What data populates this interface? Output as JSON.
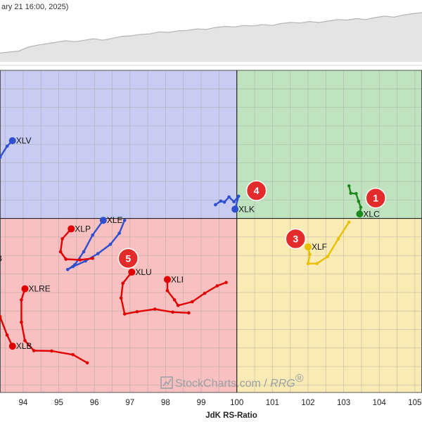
{
  "header": {
    "caption": "ary 21 16:00, 2025)"
  },
  "watermark": {
    "brand": "StockCharts.com",
    "separator": " / ",
    "product": "RRG",
    "mark": "®"
  },
  "chart_data": {
    "type": "scatter",
    "xlabel": "JdK RS-Ratio",
    "xlim": [
      93.35,
      105.2
    ],
    "ylim": [
      95.3,
      104.0
    ],
    "x_ticks": [
      "94",
      "95",
      "96",
      "97",
      "98",
      "99",
      "100",
      "101",
      "102",
      "103",
      "104",
      "105"
    ],
    "center": [
      100,
      100
    ],
    "quadrant_colors": {
      "leading": "#bfe3bf",
      "weakening": "#faebb4",
      "lagging": "#f8c0c0",
      "improving": "#c8ccf2"
    },
    "benchmark_area": {
      "fill": "#e4e4e4",
      "stroke": "#b5b5b5",
      "values": [
        0.18,
        0.2,
        0.22,
        0.3,
        0.34,
        0.37,
        0.4,
        0.43,
        0.41,
        0.44,
        0.47,
        0.44,
        0.48,
        0.52,
        0.53,
        0.56,
        0.57,
        0.61,
        0.6,
        0.63,
        0.64,
        0.67,
        0.66,
        0.7,
        0.72,
        0.71,
        0.74,
        0.73,
        0.76,
        0.74,
        0.78,
        0.8,
        0.79,
        0.82,
        0.8,
        0.83,
        0.86,
        0.85,
        0.88,
        0.86,
        0.9,
        0.93,
        0.91,
        0.95,
        0.98,
        1.0
      ]
    },
    "series": [
      {
        "name": "XLC",
        "color": "#1e8a1e",
        "points": [
          [
            103.15,
            100.88
          ],
          [
            103.2,
            100.68
          ],
          [
            103.35,
            100.67
          ],
          [
            103.42,
            100.46
          ],
          [
            103.48,
            100.3
          ],
          [
            103.45,
            100.12
          ]
        ]
      },
      {
        "name": "XLF",
        "color": "#e8c000",
        "points": [
          [
            103.15,
            99.9
          ],
          [
            102.85,
            99.45
          ],
          [
            102.55,
            98.97
          ],
          [
            102.25,
            98.78
          ],
          [
            102.0,
            98.78
          ],
          [
            102.05,
            99.03
          ],
          [
            102.0,
            99.23
          ]
        ]
      },
      {
        "name": "XLK",
        "color": "#2f4fcf",
        "points": [
          [
            99.4,
            100.37
          ],
          [
            99.55,
            100.47
          ],
          [
            99.65,
            100.44
          ],
          [
            99.78,
            100.58
          ],
          [
            99.92,
            100.45
          ],
          [
            100.05,
            100.6
          ],
          [
            99.95,
            100.25
          ]
        ]
      },
      {
        "name": "XLV",
        "color": "#2f4fcf",
        "points": [
          [
            93.35,
            101.65
          ],
          [
            93.55,
            101.95
          ],
          [
            93.7,
            102.1
          ]
        ]
      },
      {
        "name": "XLE",
        "color": "#2f4fcf",
        "points": [
          [
            96.85,
            99.95
          ],
          [
            96.7,
            99.6
          ],
          [
            96.45,
            99.3
          ],
          [
            96.1,
            99.05
          ],
          [
            95.75,
            98.85
          ],
          [
            95.4,
            98.7
          ],
          [
            95.25,
            98.62
          ],
          [
            95.45,
            98.75
          ],
          [
            95.7,
            99.1
          ],
          [
            95.95,
            99.55
          ],
          [
            96.25,
            99.95
          ]
        ]
      },
      {
        "name": "XLP",
        "color": "#e00000",
        "points": [
          [
            95.95,
            98.92
          ],
          [
            95.6,
            98.88
          ],
          [
            95.2,
            98.9
          ],
          [
            95.05,
            99.1
          ],
          [
            95.1,
            99.45
          ],
          [
            95.35,
            99.72
          ]
        ]
      },
      {
        "name": "XLU",
        "color": "#e00000",
        "points": [
          [
            98.65,
            97.45
          ],
          [
            98.2,
            97.47
          ],
          [
            97.7,
            97.55
          ],
          [
            97.2,
            97.48
          ],
          [
            96.85,
            97.42
          ],
          [
            96.75,
            97.85
          ],
          [
            96.8,
            98.25
          ],
          [
            97.05,
            98.55
          ]
        ]
      },
      {
        "name": "XLI",
        "color": "#e00000",
        "points": [
          [
            99.7,
            98.27
          ],
          [
            99.45,
            98.18
          ],
          [
            99.1,
            97.98
          ],
          [
            98.75,
            97.75
          ],
          [
            98.35,
            97.65
          ],
          [
            98.25,
            97.8
          ],
          [
            98.05,
            98.05
          ],
          [
            98.05,
            98.35
          ]
        ]
      },
      {
        "name": "XLRE",
        "color": "#e00000",
        "points": [
          [
            95.8,
            96.1
          ],
          [
            95.4,
            96.32
          ],
          [
            94.8,
            96.42
          ],
          [
            94.3,
            96.43
          ],
          [
            94.05,
            96.7
          ],
          [
            93.95,
            97.2
          ],
          [
            93.95,
            97.8
          ],
          [
            94.05,
            98.1
          ]
        ]
      },
      {
        "name": "XLB",
        "color": "#e00000",
        "points": [
          [
            93.35,
            97.35
          ],
          [
            93.55,
            96.85
          ],
          [
            93.7,
            96.55
          ]
        ]
      }
    ],
    "badges": [
      {
        "label": "1",
        "x": 103.9,
        "y": 100.55
      },
      {
        "label": "3",
        "x": 101.65,
        "y": 99.45
      },
      {
        "label": "4",
        "x": 100.55,
        "y": 100.75
      },
      {
        "label": "5",
        "x": 96.95,
        "y": 98.92
      }
    ],
    "partial_labels": [
      {
        "text": "B",
        "x": 93.25,
        "y": 98.92
      }
    ]
  }
}
